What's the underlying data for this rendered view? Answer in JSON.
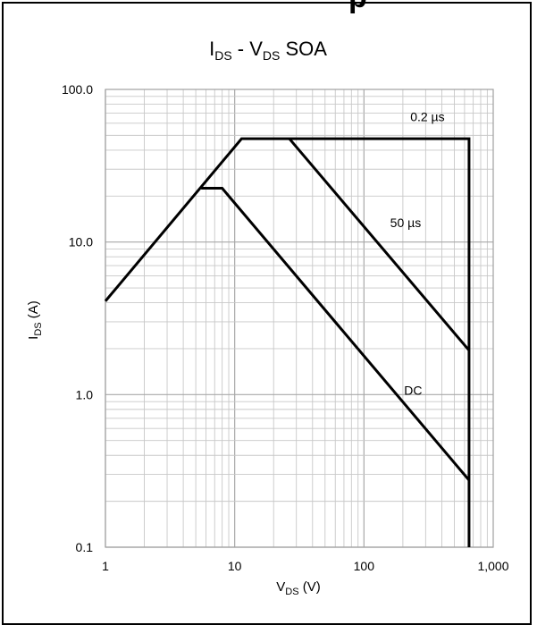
{
  "header_fragment": "p",
  "chart_data": {
    "type": "line",
    "title": {
      "main": "I",
      "main_sub": "DS",
      "middle": " - V",
      "middle_sub": "DS",
      "tail": " SOA"
    },
    "xlabel": {
      "main": "V",
      "sub": "DS",
      "tail": " (V)"
    },
    "ylabel": {
      "main": "I",
      "sub": "DS",
      "tail": " (A)"
    },
    "x_scale": "log",
    "y_scale": "log",
    "xlim": [
      1,
      1000
    ],
    "ylim": [
      0.1,
      100
    ],
    "x_ticks": [
      {
        "value": 1,
        "label": "1"
      },
      {
        "value": 10,
        "label": "10"
      },
      {
        "value": 100,
        "label": "100"
      },
      {
        "value": 1000,
        "label": "1,000"
      }
    ],
    "y_ticks": [
      {
        "value": 0.1,
        "label": "0.1"
      },
      {
        "value": 1,
        "label": "1.0"
      },
      {
        "value": 10,
        "label": "10.0"
      },
      {
        "value": 100,
        "label": "100.0"
      }
    ],
    "grid": true,
    "line_color": "#000000",
    "grid_color": "#c8c8c8",
    "series": [
      {
        "name": "0.2 µs",
        "points": [
          [
            1,
            4.1
          ],
          [
            11.3,
            47.5
          ],
          [
            650,
            47.5
          ],
          [
            650,
            0.1
          ]
        ]
      },
      {
        "name": "50 µs",
        "points": [
          [
            26.5,
            47.5
          ],
          [
            650,
            1.95
          ]
        ]
      },
      {
        "name": "DC",
        "points": [
          [
            5.5,
            22.5
          ],
          [
            8,
            22.5
          ],
          [
            650,
            0.275
          ]
        ]
      }
    ],
    "annotations": [
      {
        "text": "0.2 µs",
        "x": 310,
        "y": 62
      },
      {
        "text": "50 µs",
        "x": 210,
        "y": 12.5
      },
      {
        "text": "DC",
        "x": 240,
        "y": 1.0
      }
    ]
  }
}
